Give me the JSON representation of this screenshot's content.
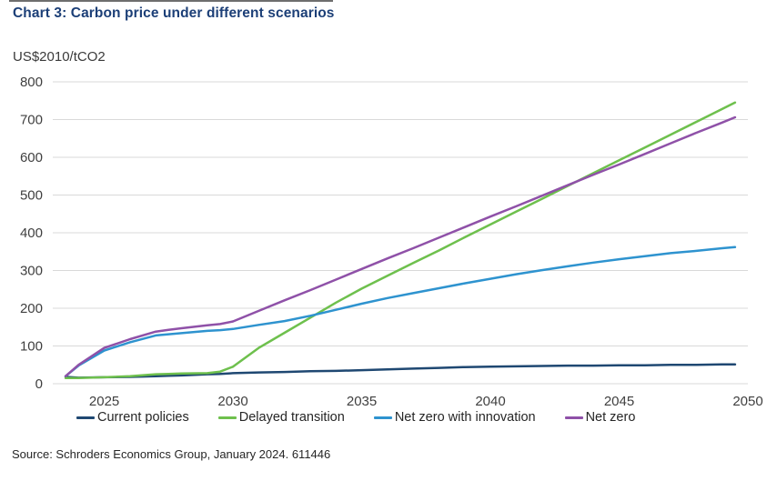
{
  "title": "Chart 3: Carbon price under different scenarios",
  "source": "Source: Schroders Economics Group, January 2024. 611446",
  "colors": {
    "title_text": "#1c3f77",
    "axis_text": "#3f3f3f",
    "gridline": "#d9d9d9",
    "legend_text": "#262626"
  },
  "chart_data": {
    "type": "line",
    "title": "Chart 3: Carbon price under different scenarios",
    "unit_label": "US$2010/tCO2",
    "xlabel": "",
    "ylabel": "US$2010/tCO2",
    "xlim": [
      2023,
      2050
    ],
    "ylim": [
      0,
      800
    ],
    "x_ticks": [
      2025,
      2030,
      2035,
      2040,
      2045,
      2050
    ],
    "y_ticks": [
      0,
      100,
      200,
      300,
      400,
      500,
      600,
      700,
      800
    ],
    "grid": "horizontal",
    "legend_position": "bottom",
    "x": [
      2023.5,
      2024,
      2025,
      2026,
      2027,
      2027.5,
      2028,
      2029,
      2029.5,
      2030,
      2031,
      2032,
      2033,
      2034,
      2035,
      2036,
      2037,
      2038,
      2039,
      2040,
      2041,
      2042,
      2043,
      2044,
      2045,
      2046,
      2047,
      2048,
      2049,
      2049.5
    ],
    "series": [
      {
        "name": "Current policies",
        "color": "#1f4872",
        "values": [
          18,
          16,
          17,
          18,
          20,
          21,
          22,
          25,
          26,
          28,
          30,
          31,
          33,
          34,
          36,
          38,
          40,
          42,
          44,
          45,
          46,
          47,
          48,
          48,
          49,
          49,
          50,
          50,
          51,
          51
        ]
      },
      {
        "name": "Delayed transition",
        "color": "#6ec04d",
        "values": [
          15,
          15,
          17,
          20,
          25,
          26,
          27,
          28,
          32,
          45,
          95,
          135,
          175,
          215,
          252,
          286,
          320,
          353,
          388,
          422,
          456,
          490,
          524,
          558,
          592,
          626,
          660,
          694,
          728,
          745
        ]
      },
      {
        "name": "Net zero with innovation",
        "color": "#2e93cf",
        "values": [
          20,
          48,
          88,
          110,
          128,
          131,
          134,
          140,
          142,
          145,
          156,
          166,
          180,
          196,
          212,
          227,
          240,
          253,
          266,
          278,
          290,
          301,
          311,
          321,
          330,
          338,
          346,
          352,
          359,
          362
        ]
      },
      {
        "name": "Net zero",
        "color": "#8f51a8",
        "values": [
          20,
          50,
          95,
          118,
          138,
          143,
          147,
          155,
          158,
          165,
          193,
          221,
          248,
          276,
          304,
          332,
          359,
          387,
          415,
          443,
          470,
          498,
          526,
          554,
          581,
          609,
          637,
          665,
          692,
          706
        ]
      }
    ]
  }
}
